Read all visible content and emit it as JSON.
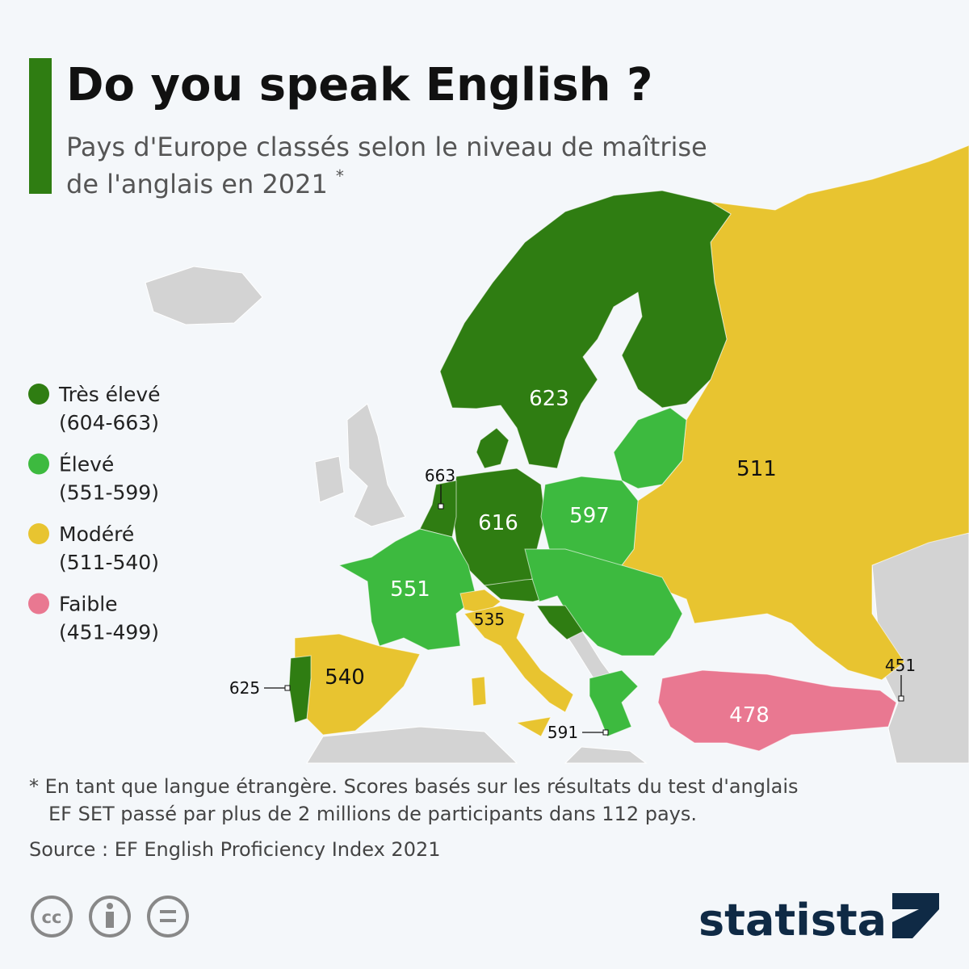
{
  "header": {
    "title": "Do you speak English ?",
    "subtitle": [
      "Pays d'Europe classés selon le niveau de maîtrise",
      "de l'anglais en 2021"
    ],
    "asterisk": "*"
  },
  "legend": {
    "items": [
      {
        "label": "Très élevé",
        "range": "(604-663)",
        "color": "#2f7d12"
      },
      {
        "label": "Élevé",
        "range": "(551-599)",
        "color": "#3dba3f"
      },
      {
        "label": "Modéré",
        "range": "(511-540)",
        "color": "#e8c430"
      },
      {
        "label": "Faible",
        "range": "(451-499)",
        "color": "#e97891"
      }
    ]
  },
  "map": {
    "labels": [
      623,
      663,
      616,
      597,
      551,
      511,
      535,
      540,
      625,
      591,
      451,
      478
    ]
  },
  "footnote": [
    "* En tant que langue étrangère. Scores basés sur les résultats du test d'anglais",
    "EF SET passé par plus de 2 millions de participants dans 112 pays."
  ],
  "source": "Source : EF English Proficiency Index 2021",
  "license_icon": "cc",
  "brand": "statista"
}
